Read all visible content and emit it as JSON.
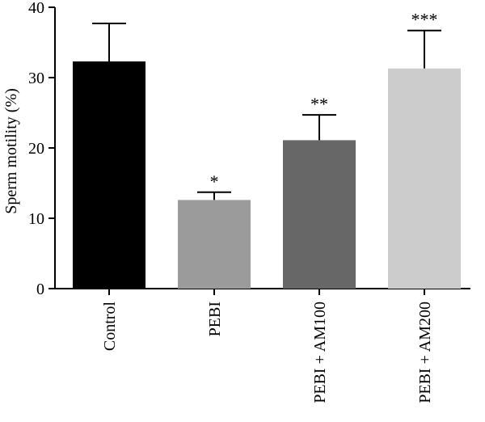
{
  "chart_data": {
    "type": "bar",
    "ylabel": "Sperm motility (%)",
    "xlabel": "",
    "ylim": [
      0,
      40
    ],
    "yticks": [
      0,
      10,
      20,
      30,
      40
    ],
    "categories": [
      "Control",
      "PEBI",
      "PEBI + AM100",
      "PEBI + AM200"
    ],
    "values": [
      32.3,
      12.6,
      21.1,
      31.3
    ],
    "errors": [
      5.4,
      1.1,
      3.6,
      5.4
    ],
    "significance": [
      "",
      "*",
      "**",
      "***"
    ],
    "colors": [
      "#000000",
      "#9b9b9b",
      "#676767",
      "#cccccc"
    ],
    "grid": false,
    "legend": "none"
  }
}
